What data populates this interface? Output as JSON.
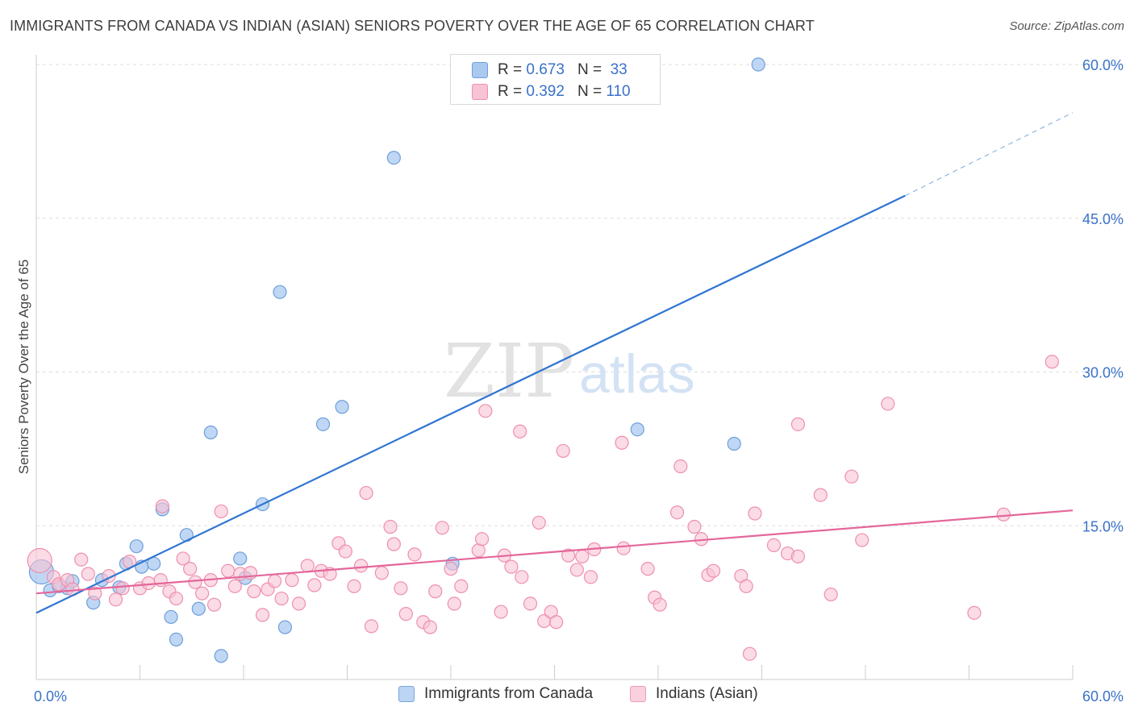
{
  "title": "IMMIGRANTS FROM CANADA VS INDIAN (ASIAN) SENIORS POVERTY OVER THE AGE OF 65 CORRELATION CHART",
  "source": "Source: ZipAtlas.com",
  "watermark": {
    "zip": "ZIP",
    "atlas": "atlas"
  },
  "colors": {
    "blue_fill": "#a9c9f0",
    "blue_stroke": "#6f9fdb",
    "blue_line": "#2f75d2",
    "pink_fill": "#f8c3d4",
    "pink_stroke": "#ee8fae",
    "pink_line": "#e4679a",
    "grid": "#dddddd",
    "tick_label": "#3a72c8"
  },
  "stats": [
    {
      "r_label": "R =",
      "r_value": "0.673",
      "n_label": "N =",
      "n_value": " 33"
    },
    {
      "r_label": "R =",
      "r_value": "0.392",
      "n_label": "N =",
      "n_value": "110"
    }
  ],
  "chart_data": {
    "type": "scatter",
    "title": "IMMIGRANTS FROM CANADA VS INDIAN (ASIAN) SENIORS POVERTY OVER THE AGE OF 65 CORRELATION CHART",
    "xlabel": "",
    "ylabel": "Seniors Poverty Over the Age of 65",
    "xlim": [
      0,
      60
    ],
    "ylim": [
      0,
      60
    ],
    "x_tick_labels": [
      {
        "value": 0,
        "label": "0.0%"
      },
      {
        "value": 60,
        "label": "60.0%"
      }
    ],
    "y_tick_labels": [
      {
        "value": 15,
        "label": "15.0%"
      },
      {
        "value": 30,
        "label": "30.0%"
      },
      {
        "value": 45,
        "label": "45.0%"
      },
      {
        "value": 60,
        "label": "60.0%"
      }
    ],
    "x_tick_marks": [
      0,
      6,
      12,
      18,
      24,
      30,
      36,
      42,
      48,
      54,
      60
    ],
    "grid": true,
    "legend_position": "bottom-center",
    "series": [
      {
        "name": "Immigrants from Canada",
        "color": "blue",
        "r": 0.673,
        "n": 33,
        "trend": {
          "x0": 0,
          "y0": 6.5,
          "x1": 50.3,
          "y1": 47.2,
          "dashed_to_x": 60,
          "dashed_to_y": 55.3
        },
        "points": [
          {
            "x": 0.3,
            "y": 10.5,
            "big": true
          },
          {
            "x": 0.8,
            "y": 8.7
          },
          {
            "x": 1.3,
            "y": 9.1
          },
          {
            "x": 1.8,
            "y": 8.9
          },
          {
            "x": 2.1,
            "y": 9.6
          },
          {
            "x": 3.3,
            "y": 7.5
          },
          {
            "x": 3.8,
            "y": 9.7
          },
          {
            "x": 4.8,
            "y": 9.0
          },
          {
            "x": 5.2,
            "y": 11.3
          },
          {
            "x": 5.8,
            "y": 13.0
          },
          {
            "x": 6.1,
            "y": 11.0
          },
          {
            "x": 6.8,
            "y": 11.3
          },
          {
            "x": 7.3,
            "y": 16.6
          },
          {
            "x": 7.8,
            "y": 6.1
          },
          {
            "x": 8.1,
            "y": 3.9
          },
          {
            "x": 8.7,
            "y": 14.1
          },
          {
            "x": 9.4,
            "y": 6.9
          },
          {
            "x": 10.1,
            "y": 24.1
          },
          {
            "x": 10.7,
            "y": 2.3
          },
          {
            "x": 11.8,
            "y": 11.8
          },
          {
            "x": 12.1,
            "y": 9.9
          },
          {
            "x": 13.1,
            "y": 17.1
          },
          {
            "x": 14.1,
            "y": 37.8
          },
          {
            "x": 14.4,
            "y": 5.1
          },
          {
            "x": 16.6,
            "y": 24.9
          },
          {
            "x": 17.7,
            "y": 26.6
          },
          {
            "x": 20.7,
            "y": 50.9
          },
          {
            "x": 24.1,
            "y": 11.3
          },
          {
            "x": 34.8,
            "y": 24.4
          },
          {
            "x": 40.4,
            "y": 23.0
          },
          {
            "x": 41.8,
            "y": 60.0
          }
        ]
      },
      {
        "name": "Indians (Asian)",
        "color": "pink",
        "r": 0.392,
        "n": 110,
        "trend": {
          "x0": 0,
          "y0": 8.4,
          "x1": 60,
          "y1": 16.5
        },
        "points": [
          {
            "x": 0.2,
            "y": 11.6,
            "big": true
          },
          {
            "x": 1.0,
            "y": 10.0
          },
          {
            "x": 1.3,
            "y": 9.3
          },
          {
            "x": 1.8,
            "y": 9.7
          },
          {
            "x": 2.1,
            "y": 8.8
          },
          {
            "x": 2.6,
            "y": 11.7
          },
          {
            "x": 3.0,
            "y": 10.3
          },
          {
            "x": 3.4,
            "y": 8.4
          },
          {
            "x": 4.2,
            "y": 10.1
          },
          {
            "x": 4.6,
            "y": 7.8
          },
          {
            "x": 5.0,
            "y": 8.9
          },
          {
            "x": 5.4,
            "y": 11.5
          },
          {
            "x": 6.0,
            "y": 8.9
          },
          {
            "x": 6.5,
            "y": 9.4
          },
          {
            "x": 7.2,
            "y": 9.7
          },
          {
            "x": 7.3,
            "y": 16.9
          },
          {
            "x": 7.7,
            "y": 8.6
          },
          {
            "x": 8.1,
            "y": 7.9
          },
          {
            "x": 8.5,
            "y": 11.8
          },
          {
            "x": 8.9,
            "y": 10.8
          },
          {
            "x": 9.2,
            "y": 9.5
          },
          {
            "x": 9.6,
            "y": 8.4
          },
          {
            "x": 10.1,
            "y": 9.7
          },
          {
            "x": 10.3,
            "y": 7.3
          },
          {
            "x": 10.7,
            "y": 16.4
          },
          {
            "x": 11.1,
            "y": 10.6
          },
          {
            "x": 11.5,
            "y": 9.1
          },
          {
            "x": 11.8,
            "y": 10.3
          },
          {
            "x": 12.4,
            "y": 10.4
          },
          {
            "x": 12.6,
            "y": 8.6
          },
          {
            "x": 13.1,
            "y": 6.3
          },
          {
            "x": 13.4,
            "y": 8.8
          },
          {
            "x": 13.8,
            "y": 9.6
          },
          {
            "x": 14.2,
            "y": 7.9
          },
          {
            "x": 14.8,
            "y": 9.7
          },
          {
            "x": 15.2,
            "y": 7.4
          },
          {
            "x": 15.7,
            "y": 11.1
          },
          {
            "x": 16.1,
            "y": 9.2
          },
          {
            "x": 16.5,
            "y": 10.6
          },
          {
            "x": 17.0,
            "y": 10.3
          },
          {
            "x": 17.5,
            "y": 13.3
          },
          {
            "x": 17.9,
            "y": 12.5
          },
          {
            "x": 18.4,
            "y": 9.1
          },
          {
            "x": 18.8,
            "y": 11.1
          },
          {
            "x": 19.1,
            "y": 18.2
          },
          {
            "x": 19.4,
            "y": 5.2
          },
          {
            "x": 20.0,
            "y": 10.4
          },
          {
            "x": 20.5,
            "y": 14.9
          },
          {
            "x": 20.7,
            "y": 13.2
          },
          {
            "x": 21.1,
            "y": 8.9
          },
          {
            "x": 21.4,
            "y": 6.4
          },
          {
            "x": 21.9,
            "y": 12.2
          },
          {
            "x": 22.4,
            "y": 5.6
          },
          {
            "x": 22.8,
            "y": 5.1
          },
          {
            "x": 23.1,
            "y": 8.6
          },
          {
            "x": 23.5,
            "y": 14.8
          },
          {
            "x": 24.0,
            "y": 10.8
          },
          {
            "x": 24.2,
            "y": 7.4
          },
          {
            "x": 24.6,
            "y": 9.1
          },
          {
            "x": 26.0,
            "y": 26.2
          },
          {
            "x": 25.6,
            "y": 12.6
          },
          {
            "x": 25.8,
            "y": 13.7
          },
          {
            "x": 26.9,
            "y": 6.6
          },
          {
            "x": 27.1,
            "y": 12.1
          },
          {
            "x": 27.5,
            "y": 11.0
          },
          {
            "x": 28.1,
            "y": 10.0
          },
          {
            "x": 28.0,
            "y": 24.2
          },
          {
            "x": 28.6,
            "y": 7.4
          },
          {
            "x": 29.1,
            "y": 15.3
          },
          {
            "x": 29.4,
            "y": 5.7
          },
          {
            "x": 29.8,
            "y": 6.6
          },
          {
            "x": 30.1,
            "y": 5.6
          },
          {
            "x": 30.5,
            "y": 22.3
          },
          {
            "x": 30.8,
            "y": 12.1
          },
          {
            "x": 31.3,
            "y": 10.7
          },
          {
            "x": 31.6,
            "y": 12.0
          },
          {
            "x": 32.1,
            "y": 10.0
          },
          {
            "x": 32.3,
            "y": 12.7
          },
          {
            "x": 33.9,
            "y": 23.1
          },
          {
            "x": 34.0,
            "y": 12.8
          },
          {
            "x": 35.4,
            "y": 10.8
          },
          {
            "x": 35.8,
            "y": 8.0
          },
          {
            "x": 36.1,
            "y": 7.3
          },
          {
            "x": 37.3,
            "y": 20.8
          },
          {
            "x": 37.1,
            "y": 16.3
          },
          {
            "x": 38.1,
            "y": 14.9
          },
          {
            "x": 38.5,
            "y": 13.7
          },
          {
            "x": 38.9,
            "y": 10.2
          },
          {
            "x": 39.2,
            "y": 10.6
          },
          {
            "x": 40.8,
            "y": 10.1
          },
          {
            "x": 41.1,
            "y": 9.1
          },
          {
            "x": 41.3,
            "y": 2.5
          },
          {
            "x": 41.6,
            "y": 16.2
          },
          {
            "x": 42.7,
            "y": 13.1
          },
          {
            "x": 43.5,
            "y": 12.3
          },
          {
            "x": 44.1,
            "y": 12.0
          },
          {
            "x": 44.1,
            "y": 24.9
          },
          {
            "x": 45.4,
            "y": 18.0
          },
          {
            "x": 46.0,
            "y": 8.3
          },
          {
            "x": 47.2,
            "y": 19.8
          },
          {
            "x": 47.8,
            "y": 13.6
          },
          {
            "x": 49.3,
            "y": 26.9
          },
          {
            "x": 54.3,
            "y": 6.5
          },
          {
            "x": 56.0,
            "y": 16.1
          },
          {
            "x": 58.8,
            "y": 31.0
          }
        ]
      }
    ]
  },
  "legend": [
    {
      "label": "Immigrants from Canada",
      "color": "blue"
    },
    {
      "label": "Indians (Asian)",
      "color": "pink"
    }
  ]
}
